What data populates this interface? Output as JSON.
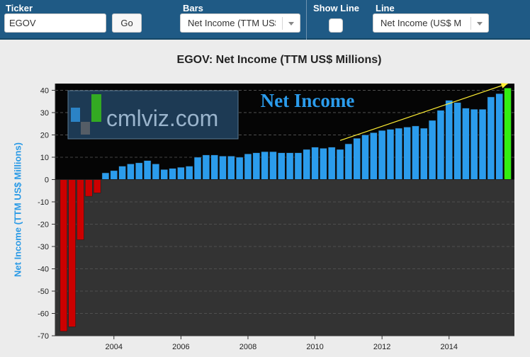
{
  "toolbar": {
    "ticker_label": "Ticker",
    "ticker_value": "EGOV",
    "go_label": "Go",
    "bars_label": "Bars",
    "bars_value": "Net Income (TTM US$",
    "show_line_label": "Show Line",
    "line_label": "Line",
    "line_value": "Net Income (US$ M"
  },
  "watermark": {
    "text": "cmlviz.com",
    "overlay_title": "Net Income"
  },
  "chart_data": {
    "type": "bar",
    "title": "EGOV: Net Income (TTM US$ Millions)",
    "xlabel": "",
    "ylabel": "Net Income (TTM US$ Millions)",
    "ylim": [
      -70,
      43
    ],
    "yticks": [
      40,
      30,
      20,
      10,
      0,
      -10,
      -20,
      -30,
      -40,
      -50,
      -60,
      -70
    ],
    "xlim": [
      2002.25,
      2015.95
    ],
    "xticks": [
      2004,
      2006,
      2008,
      2010,
      2012,
      2014
    ],
    "grid": true,
    "colors": {
      "negative": "#cc0000",
      "positive": "#2b9cec",
      "latest": "#33ee11",
      "plot_top_bg": "#050505",
      "plot_bottom_bg": "#333333",
      "trend_line": "#ffee33"
    },
    "bar_width_years": 0.21,
    "x": [
      2002.5,
      2002.75,
      2003.0,
      2003.25,
      2003.5,
      2003.75,
      2004.0,
      2004.25,
      2004.5,
      2004.75,
      2005.0,
      2005.25,
      2005.5,
      2005.75,
      2006.0,
      2006.25,
      2006.5,
      2006.75,
      2007.0,
      2007.25,
      2007.5,
      2007.75,
      2008.0,
      2008.25,
      2008.5,
      2008.75,
      2009.0,
      2009.25,
      2009.5,
      2009.75,
      2010.0,
      2010.25,
      2010.5,
      2010.75,
      2011.0,
      2011.25,
      2011.5,
      2011.75,
      2012.0,
      2012.25,
      2012.5,
      2012.75,
      2013.0,
      2013.25,
      2013.5,
      2013.75,
      2014.0,
      2014.25,
      2014.5,
      2014.75,
      2015.0,
      2015.25,
      2015.5,
      2015.75
    ],
    "values": [
      -68,
      -66,
      -27,
      -7.5,
      -6,
      3,
      4,
      6,
      7,
      7.5,
      8.5,
      7,
      4.5,
      5,
      5.5,
      6,
      10,
      11,
      11,
      10.5,
      10.5,
      10,
      11.5,
      12,
      12.5,
      12.5,
      12,
      12,
      12,
      13.5,
      14.5,
      14,
      14.5,
      13.5,
      16,
      18.5,
      20,
      21,
      22,
      22.5,
      23,
      23.5,
      24,
      23,
      26.5,
      31,
      35.5,
      34.5,
      32,
      31.5,
      31.5,
      37,
      38.5,
      41
    ],
    "trend": {
      "from": [
        2010.75,
        17.5
      ],
      "to": [
        2015.75,
        43
      ]
    }
  }
}
